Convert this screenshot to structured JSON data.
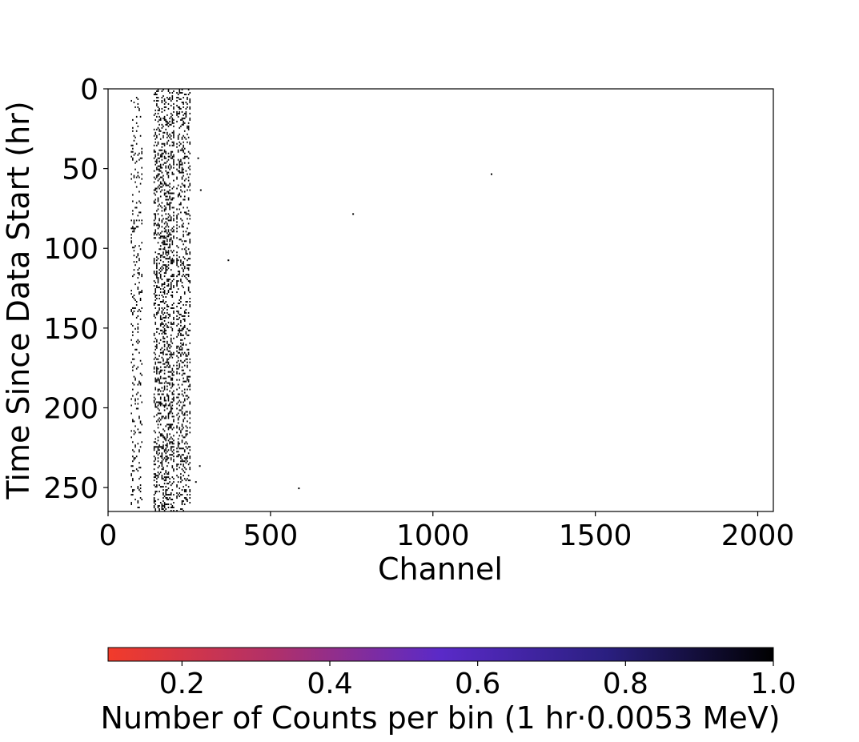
{
  "chart_data": {
    "type": "heatmap",
    "xlabel": "Channel",
    "ylabel": "Time Since Data Start (hr)",
    "xlim": [
      0,
      2048
    ],
    "ylim": [
      265,
      0
    ],
    "x_ticks": [
      0,
      500,
      1000,
      1500,
      2000
    ],
    "x_tick_labels": [
      "0",
      "500",
      "1000",
      "1500",
      "2000"
    ],
    "y_ticks": [
      0,
      50,
      100,
      150,
      200,
      250
    ],
    "y_tick_labels": [
      "0",
      "50",
      "100",
      "150",
      "200",
      "250"
    ],
    "grid": false,
    "colorbar": {
      "label": "Number of Counts per bin (1 hr·0.0053 MeV)",
      "range": [
        0.1,
        1.0
      ],
      "ticks": [
        0.2,
        0.4,
        0.6,
        0.8,
        1.0
      ],
      "tick_labels": [
        "0.2",
        "0.4",
        "0.6",
        "0.8",
        "1.0"
      ],
      "colors": [
        "#f23b2a",
        "#b0306a",
        "#5a2ac8",
        "#2a1f80",
        "#000000"
      ],
      "orientation": "horizontal"
    },
    "bin_value": 1.0,
    "bands": [
      {
        "channel_min": 70,
        "channel_max": 105,
        "rate": 0.22
      },
      {
        "channel_min": 140,
        "channel_max": 200,
        "rate": 0.55
      },
      {
        "channel_min": 210,
        "channel_max": 250,
        "rate": 0.45
      }
    ],
    "isolated_points": [
      {
        "channel": 1178,
        "hour": 53
      },
      {
        "channel": 752,
        "hour": 78
      },
      {
        "channel": 368,
        "hour": 107
      },
      {
        "channel": 585,
        "hour": 250
      },
      {
        "channel": 275,
        "hour": 43
      },
      {
        "channel": 283,
        "hour": 63
      },
      {
        "channel": 280,
        "hour": 236
      },
      {
        "channel": 268,
        "hour": 246
      }
    ]
  }
}
